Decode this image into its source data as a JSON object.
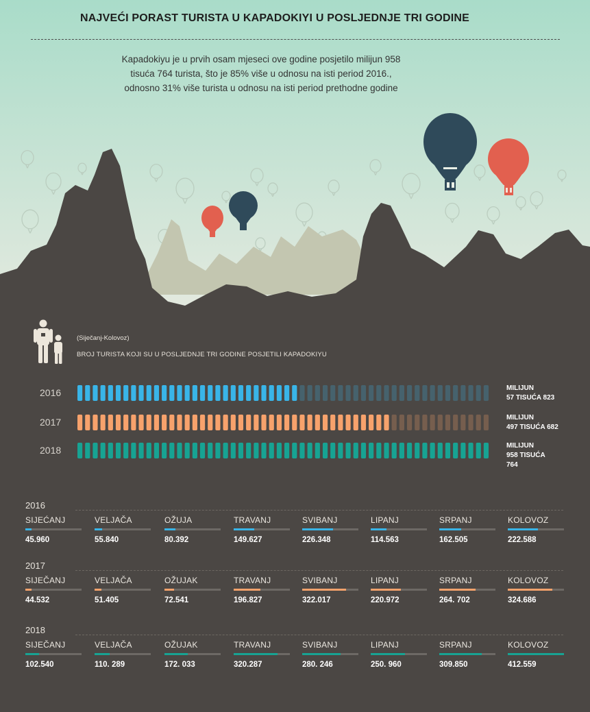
{
  "header": {
    "title": "NAJVEĆI PORAST TURISTA U KAPADOKIYI U POSLJEDNJE TRI GODINE",
    "intro": "Kapadokiyu je u prvih osam mjeseci ove godine posjetilo milijun 958 tisuća 764 turista, što je 85% više u odnosu na isti period 2016., odnosno 31% više turista u odnosu na isti period prethodne godine"
  },
  "colors": {
    "sky_top": "#a9dcc9",
    "sky_bottom": "#e6eae0",
    "ground": "#4b4744",
    "mist": "#c3c6b0",
    "balloon_navy": "#2f4a5a",
    "balloon_red": "#e2604f",
    "y2016": "#39b5e8",
    "y2017": "#f7a26c",
    "y2018": "#17a393",
    "text_light": "#ebe7e0"
  },
  "icons": {
    "people": "adult-and-child-icon",
    "balloon": "hot-air-balloon-icon"
  },
  "chart_data": [
    {
      "type": "bar",
      "subtitle": "(Siječanj-Kolovoz)",
      "title": "BROJ TURISTA KOJI SU U POSLJEDNJE TRI GODINE POSJETILI KAPADOKIYU",
      "categories": [
        "2016",
        "2017",
        "2018"
      ],
      "values": [
        1057823,
        1497682,
        1958764
      ],
      "value_labels": [
        [
          "MILIJUN",
          "57 TISUĆA 823"
        ],
        [
          "MILIJUN",
          "497 TISUĆA 682"
        ],
        [
          "MILIJUN",
          "958 TISUĆA",
          "764"
        ]
      ],
      "units_per_full_strip": 1958764,
      "segments_per_strip": 54,
      "series_colors": [
        "#39b5e8",
        "#f7a26c",
        "#17a393"
      ]
    },
    {
      "type": "bar",
      "title": "",
      "months": [
        "SIJEČANJ",
        "VELJAČA",
        "OŽUJA",
        "TRAVANJ",
        "SVIBANJ",
        "LIPANJ",
        "SRPANJ",
        "KOLOVOZ"
      ],
      "ylim": [
        0,
        412559
      ],
      "series": [
        {
          "name": "2016",
          "month_labels": [
            "SIJEĆANJ",
            "VELJAČA",
            "OŽUJA",
            "TRAVANJ",
            "SVIBANJ",
            "LIPANJ",
            "SRPANJ",
            "KOLOVOZ"
          ],
          "values": [
            45960,
            55840,
            80392,
            149627,
            226348,
            114563,
            162505,
            222588
          ],
          "value_labels": [
            "45.960",
            "55.840",
            "80.392",
            "149.627",
            "226.348",
            "114.563",
            "162.505",
            "222.588"
          ],
          "color": "#39b5e8"
        },
        {
          "name": "2017",
          "month_labels": [
            "SIJEČANJ",
            "VELJAČA",
            "OŽUJAK",
            "TRAVANJ",
            "SVIBANJ",
            "LIPANJ",
            "SRPANJ",
            "KOLOVOZ"
          ],
          "values": [
            44532,
            51405,
            72541,
            196827,
            322017,
            220972,
            264702,
            324686
          ],
          "value_labels": [
            "44.532",
            "51.405",
            "72.541",
            "196.827",
            "322.017",
            "220.972",
            "264. 702",
            "324.686"
          ],
          "color": "#f7a26c"
        },
        {
          "name": "2018",
          "month_labels": [
            "SIJEČANJ",
            "VELJAČA",
            "OŽUJAK",
            "TRAVANJ",
            "SVIBANJ",
            "LIPANJ",
            "SRPANJ",
            "KOLOVOZ"
          ],
          "values": [
            102540,
            110289,
            172033,
            320287,
            280246,
            250960,
            309850,
            412559
          ],
          "value_labels": [
            "102.540",
            "110. 289",
            "172. 033",
            "320.287",
            "280. 246",
            "250. 960",
            "309.850",
            "412.559"
          ],
          "color": "#17a393"
        }
      ]
    }
  ]
}
